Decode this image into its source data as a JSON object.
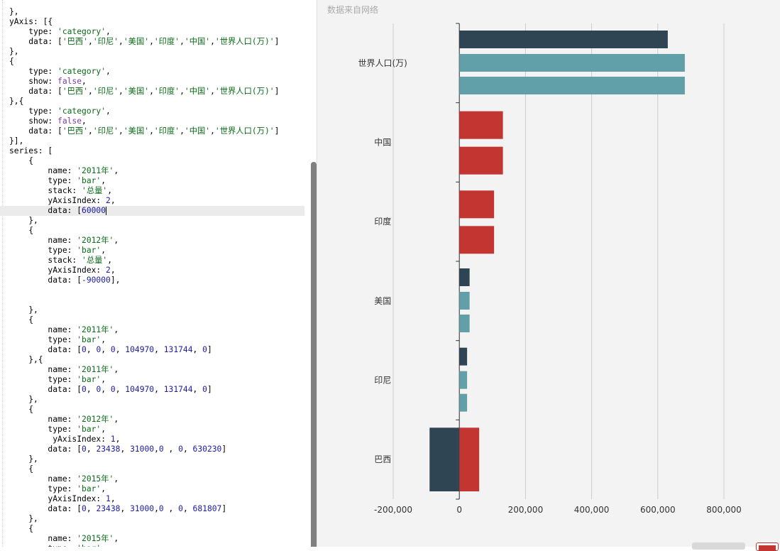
{
  "editor": {
    "lines": [
      [
        [
          "p",
          "},"
        ]
      ],
      [
        [
          "p",
          "yAxis: [{"
        ]
      ],
      [
        [
          "p",
          "    type: "
        ],
        [
          "s",
          "'category'"
        ],
        [
          "p",
          ","
        ]
      ],
      [
        [
          "p",
          "    data: ["
        ],
        [
          "s",
          "'巴西'"
        ],
        [
          "p",
          ","
        ],
        [
          "s",
          "'印尼'"
        ],
        [
          "p",
          ","
        ],
        [
          "s",
          "'美国'"
        ],
        [
          "p",
          ","
        ],
        [
          "s",
          "'印度'"
        ],
        [
          "p",
          ","
        ],
        [
          "s",
          "'中国'"
        ],
        [
          "p",
          ","
        ],
        [
          "s",
          "'世界人口(万)'"
        ],
        [
          "p",
          "]"
        ]
      ],
      [
        [
          "p",
          "},"
        ]
      ],
      [
        [
          "p",
          "{"
        ]
      ],
      [
        [
          "p",
          "    type: "
        ],
        [
          "s",
          "'category'"
        ],
        [
          "p",
          ","
        ]
      ],
      [
        [
          "p",
          "    show: "
        ],
        [
          "k",
          "false"
        ],
        [
          "p",
          ","
        ]
      ],
      [
        [
          "p",
          "    data: ["
        ],
        [
          "s",
          "'巴西'"
        ],
        [
          "p",
          ","
        ],
        [
          "s",
          "'印尼'"
        ],
        [
          "p",
          ","
        ],
        [
          "s",
          "'美国'"
        ],
        [
          "p",
          ","
        ],
        [
          "s",
          "'印度'"
        ],
        [
          "p",
          ","
        ],
        [
          "s",
          "'中国'"
        ],
        [
          "p",
          ","
        ],
        [
          "s",
          "'世界人口(万)'"
        ],
        [
          "p",
          "]"
        ]
      ],
      [
        [
          "p",
          "},{"
        ]
      ],
      [
        [
          "p",
          "    type: "
        ],
        [
          "s",
          "'category'"
        ],
        [
          "p",
          ","
        ]
      ],
      [
        [
          "p",
          "    show: "
        ],
        [
          "k",
          "false"
        ],
        [
          "p",
          ","
        ]
      ],
      [
        [
          "p",
          "    data: ["
        ],
        [
          "s",
          "'巴西'"
        ],
        [
          "p",
          ","
        ],
        [
          "s",
          "'印尼'"
        ],
        [
          "p",
          ","
        ],
        [
          "s",
          "'美国'"
        ],
        [
          "p",
          ","
        ],
        [
          "s",
          "'印度'"
        ],
        [
          "p",
          ","
        ],
        [
          "s",
          "'中国'"
        ],
        [
          "p",
          ","
        ],
        [
          "s",
          "'世界人口(万)'"
        ],
        [
          "p",
          "]"
        ]
      ],
      [
        [
          "p",
          "}],"
        ]
      ],
      [
        [
          "p",
          "series: ["
        ]
      ],
      [
        [
          "p",
          "    {"
        ]
      ],
      [
        [
          "p",
          "        name: "
        ],
        [
          "s",
          "'2011年'"
        ],
        [
          "p",
          ","
        ]
      ],
      [
        [
          "p",
          "        type: "
        ],
        [
          "s",
          "'bar'"
        ],
        [
          "p",
          ","
        ]
      ],
      [
        [
          "p",
          "        stack: "
        ],
        [
          "s",
          "'总量'"
        ],
        [
          "p",
          ","
        ]
      ],
      [
        [
          "p",
          "        yAxisIndex: "
        ],
        [
          "n",
          "2"
        ],
        [
          "p",
          ","
        ]
      ],
      [
        [
          "p",
          "        data: ["
        ],
        [
          "n",
          "60000"
        ],
        [
          "c",
          ""
        ]
      ],
      [
        [
          "p",
          "    },"
        ]
      ],
      [
        [
          "p",
          "    {"
        ]
      ],
      [
        [
          "p",
          "        name: "
        ],
        [
          "s",
          "'2012年'"
        ],
        [
          "p",
          ","
        ]
      ],
      [
        [
          "p",
          "        type: "
        ],
        [
          "s",
          "'bar'"
        ],
        [
          "p",
          ","
        ]
      ],
      [
        [
          "p",
          "        stack: "
        ],
        [
          "s",
          "'总量'"
        ],
        [
          "p",
          ","
        ]
      ],
      [
        [
          "p",
          "        yAxisIndex: "
        ],
        [
          "n",
          "2"
        ],
        [
          "p",
          ","
        ]
      ],
      [
        [
          "p",
          "        data: ["
        ],
        [
          "n",
          "-90000"
        ],
        [
          "p",
          "],"
        ]
      ],
      [
        [
          "p",
          ""
        ]
      ],
      [
        [
          "p",
          ""
        ]
      ],
      [
        [
          "p",
          "    },"
        ]
      ],
      [
        [
          "p",
          "    {"
        ]
      ],
      [
        [
          "p",
          "        name: "
        ],
        [
          "s",
          "'2011年'"
        ],
        [
          "p",
          ","
        ]
      ],
      [
        [
          "p",
          "        type: "
        ],
        [
          "s",
          "'bar'"
        ],
        [
          "p",
          ","
        ]
      ],
      [
        [
          "p",
          "        data: ["
        ],
        [
          "n",
          "0"
        ],
        [
          "p",
          ", "
        ],
        [
          "n",
          "0"
        ],
        [
          "p",
          ", "
        ],
        [
          "n",
          "0"
        ],
        [
          "p",
          ", "
        ],
        [
          "n",
          "104970"
        ],
        [
          "p",
          ", "
        ],
        [
          "n",
          "131744"
        ],
        [
          "p",
          ", "
        ],
        [
          "n",
          "0"
        ],
        [
          "p",
          "]"
        ]
      ],
      [
        [
          "p",
          "    },{"
        ]
      ],
      [
        [
          "p",
          "        name: "
        ],
        [
          "s",
          "'2011年'"
        ],
        [
          "p",
          ","
        ]
      ],
      [
        [
          "p",
          "        type: "
        ],
        [
          "s",
          "'bar'"
        ],
        [
          "p",
          ","
        ]
      ],
      [
        [
          "p",
          "        data: ["
        ],
        [
          "n",
          "0"
        ],
        [
          "p",
          ", "
        ],
        [
          "n",
          "0"
        ],
        [
          "p",
          ", "
        ],
        [
          "n",
          "0"
        ],
        [
          "p",
          ", "
        ],
        [
          "n",
          "104970"
        ],
        [
          "p",
          ", "
        ],
        [
          "n",
          "131744"
        ],
        [
          "p",
          ", "
        ],
        [
          "n",
          "0"
        ],
        [
          "p",
          "]"
        ]
      ],
      [
        [
          "p",
          "    },"
        ]
      ],
      [
        [
          "p",
          "    {"
        ]
      ],
      [
        [
          "p",
          "        name: "
        ],
        [
          "s",
          "'2012年'"
        ],
        [
          "p",
          ","
        ]
      ],
      [
        [
          "p",
          "        type: "
        ],
        [
          "s",
          "'bar'"
        ],
        [
          "p",
          ","
        ]
      ],
      [
        [
          "p",
          "         yAxisIndex: "
        ],
        [
          "n",
          "1"
        ],
        [
          "p",
          ","
        ]
      ],
      [
        [
          "p",
          "        data: ["
        ],
        [
          "n",
          "0"
        ],
        [
          "p",
          ", "
        ],
        [
          "n",
          "23438"
        ],
        [
          "p",
          ", "
        ],
        [
          "n",
          "31000"
        ],
        [
          "p",
          ","
        ],
        [
          "n",
          "0"
        ],
        [
          "p",
          " , "
        ],
        [
          "n",
          "0"
        ],
        [
          "p",
          ", "
        ],
        [
          "n",
          "630230"
        ],
        [
          "p",
          "]"
        ]
      ],
      [
        [
          "p",
          "    },"
        ]
      ],
      [
        [
          "p",
          "    {"
        ]
      ],
      [
        [
          "p",
          "        name: "
        ],
        [
          "s",
          "'2015年'"
        ],
        [
          "p",
          ","
        ]
      ],
      [
        [
          "p",
          "        type: "
        ],
        [
          "s",
          "'bar'"
        ],
        [
          "p",
          ","
        ]
      ],
      [
        [
          "p",
          "        yAxisIndex: "
        ],
        [
          "n",
          "1"
        ],
        [
          "p",
          ","
        ]
      ],
      [
        [
          "p",
          "        data: ["
        ],
        [
          "n",
          "0"
        ],
        [
          "p",
          ", "
        ],
        [
          "n",
          "23438"
        ],
        [
          "p",
          ", "
        ],
        [
          "n",
          "31000"
        ],
        [
          "p",
          ","
        ],
        [
          "n",
          "0"
        ],
        [
          "p",
          " , "
        ],
        [
          "n",
          "0"
        ],
        [
          "p",
          ", "
        ],
        [
          "n",
          "681807"
        ],
        [
          "p",
          "]"
        ]
      ],
      [
        [
          "p",
          "    },"
        ]
      ],
      [
        [
          "p",
          "    {"
        ]
      ],
      [
        [
          "p",
          "        name: "
        ],
        [
          "s",
          "'2015年'"
        ],
        [
          "p",
          ","
        ]
      ],
      [
        [
          "p",
          "        type: "
        ],
        [
          "s",
          "'bar'"
        ],
        [
          "p",
          ","
        ]
      ]
    ],
    "highlight_line": 20
  },
  "chart_data": {
    "type": "bar",
    "orientation": "horizontal",
    "subtitle": "数据来自网络",
    "categories": [
      "巴西",
      "印尼",
      "美国",
      "印度",
      "中国",
      "世界人口(万)"
    ],
    "xlim": [
      -200000,
      800000
    ],
    "x_ticks": [
      -200000,
      0,
      200000,
      400000,
      600000,
      800000
    ],
    "x_tick_labels": [
      "-200,000",
      "0",
      "200,000",
      "400,000",
      "600,000",
      "800,000"
    ],
    "series": [
      {
        "name": "2011年",
        "color": "#c23531",
        "values": [
          60000,
          0,
          0,
          104970,
          131744,
          0
        ]
      },
      {
        "name": "2012年",
        "color": "#2f4554",
        "values": [
          -90000,
          23438,
          31000,
          0,
          0,
          630230
        ]
      },
      {
        "name": "2015年",
        "color": "#61a0a8",
        "values": [
          0,
          23438,
          31000,
          0,
          0,
          681807
        ]
      },
      {
        "name": "2011年",
        "color": "#c23531",
        "values": [
          0,
          0,
          0,
          104970,
          131744,
          0
        ]
      },
      {
        "name": "2015年",
        "color": "#61a0a8",
        "values": [
          0,
          23438,
          31000,
          0,
          0,
          681807
        ]
      }
    ],
    "grid": true
  },
  "colors": {
    "editor_bg": "#ffffff",
    "chart_bg": "#f3f3f3",
    "scroll_thumb": "#7f7f7f"
  }
}
